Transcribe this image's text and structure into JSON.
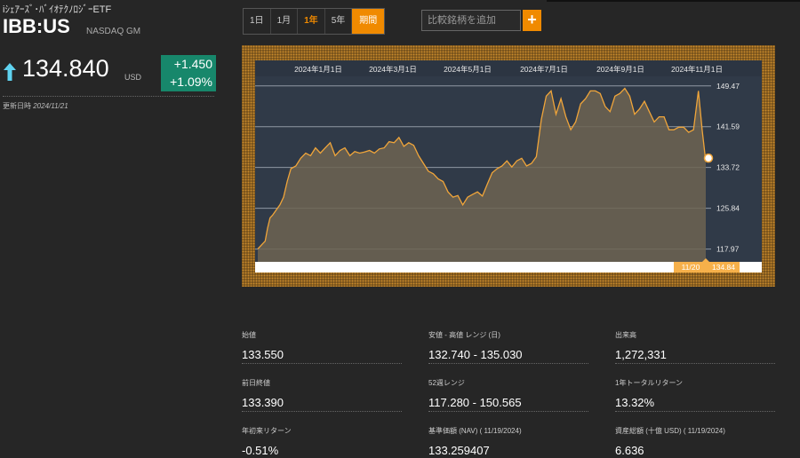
{
  "header": {
    "fund_name": "iｼｪｱｰｽﾞ･ﾊﾞｲｵﾃｸﾉﾛｼﾞｰETF",
    "ticker": "IBB:US",
    "exchange": "NASDAQ GM",
    "price": "134.840",
    "currency": "USD",
    "change": "+1.450",
    "change_pct": "+1.09%",
    "updated_label": "更新日時",
    "updated_date": "2024/11/21",
    "up_color": "#17876b"
  },
  "range_tabs": [
    {
      "label": "1日",
      "active": false
    },
    {
      "label": "1月",
      "active": false
    },
    {
      "label": "1年",
      "active": true
    },
    {
      "label": "5年",
      "active": false
    },
    {
      "label": "期間",
      "active": false
    }
  ],
  "compare": {
    "placeholder": "比較銘柄を追加",
    "add_label": "+"
  },
  "chart_data": {
    "type": "area",
    "x_ticks": [
      "2024年1月1日",
      "2024年3月1日",
      "2024年5月1日",
      "2024年7月1日",
      "2024年9月1日",
      "2024年11月1日"
    ],
    "y_ticks": [
      "149.47",
      "141.59",
      "133.72",
      "125.84",
      "117.97"
    ],
    "ylim": [
      115.5,
      152.0
    ],
    "grid": true,
    "line_color": "#f0a53a",
    "last_point": {
      "date": "11/20",
      "value": 134.84
    },
    "series": [
      {
        "x": [
          "2023-11-21",
          "2023-11-23",
          "2023-11-25",
          "2023-11-27",
          "2023-11-29",
          "2023-12-01",
          "2023-12-03",
          "2023-12-06",
          "2023-12-09",
          "2023-12-12",
          "2023-12-15",
          "2023-12-18",
          "2023-12-22",
          "2023-12-26",
          "2023-12-30",
          "2024-01-03",
          "2024-01-07",
          "2024-01-11",
          "2024-01-15",
          "2024-01-19",
          "2024-01-23",
          "2024-01-27",
          "2024-01-31",
          "2024-02-04",
          "2024-02-08",
          "2024-02-12",
          "2024-02-16",
          "2024-02-20",
          "2024-02-24",
          "2024-02-28",
          "2024-03-03",
          "2024-03-07",
          "2024-03-11",
          "2024-03-15",
          "2024-03-19",
          "2024-03-23",
          "2024-03-27",
          "2024-03-31",
          "2024-04-04",
          "2024-04-08",
          "2024-04-12",
          "2024-04-16",
          "2024-04-20",
          "2024-04-24",
          "2024-04-28",
          "2024-05-02",
          "2024-05-06",
          "2024-05-10",
          "2024-05-14",
          "2024-05-18",
          "2024-05-22",
          "2024-05-26",
          "2024-05-30",
          "2024-06-03",
          "2024-06-07",
          "2024-06-11",
          "2024-06-15",
          "2024-06-19",
          "2024-06-23",
          "2024-06-27",
          "2024-07-01",
          "2024-07-05",
          "2024-07-09",
          "2024-07-13",
          "2024-07-17",
          "2024-07-21",
          "2024-07-25",
          "2024-07-29",
          "2024-08-02",
          "2024-08-06",
          "2024-08-10",
          "2024-08-14",
          "2024-08-18",
          "2024-08-22",
          "2024-08-26",
          "2024-08-30",
          "2024-09-03",
          "2024-09-07",
          "2024-09-11",
          "2024-09-15",
          "2024-09-19",
          "2024-09-23",
          "2024-09-27",
          "2024-10-01",
          "2024-10-05",
          "2024-10-09",
          "2024-10-13",
          "2024-10-17",
          "2024-10-21",
          "2024-10-25",
          "2024-10-29",
          "2024-11-02",
          "2024-11-06",
          "2024-11-10",
          "2024-11-14",
          "2024-11-17",
          "2024-11-20"
        ],
        "values": [
          118.0,
          118.5,
          119.0,
          119.5,
          122.0,
          124.0,
          124.5,
          125.5,
          126.5,
          128.0,
          131.0,
          133.5,
          134.0,
          135.5,
          136.5,
          136.0,
          137.5,
          136.5,
          137.5,
          138.5,
          136.0,
          137.0,
          137.5,
          136.0,
          136.8,
          136.5,
          136.7,
          137.0,
          136.5,
          137.3,
          137.5,
          138.7,
          138.5,
          139.5,
          137.8,
          138.5,
          138.0,
          136.0,
          134.5,
          133.0,
          132.5,
          131.5,
          131.0,
          129.0,
          128.0,
          128.3,
          126.5,
          128.0,
          128.5,
          129.0,
          128.2,
          130.5,
          132.7,
          133.5,
          134.0,
          135.0,
          133.8,
          135.0,
          135.5,
          134.0,
          134.5,
          135.8,
          143.0,
          147.5,
          148.5,
          144.0,
          147.0,
          143.5,
          141.0,
          142.5,
          146.0,
          147.0,
          148.5,
          148.5,
          148.0,
          145.5,
          144.5,
          147.5,
          148.0,
          149.0,
          147.5,
          144.0,
          145.0,
          146.5,
          144.5,
          142.5,
          143.5,
          143.5,
          141.0,
          141.0,
          141.5,
          141.5,
          140.5,
          141.0,
          148.5,
          141.0,
          134.84
        ]
      }
    ]
  },
  "stats": [
    {
      "label": "始値",
      "value": "133.550"
    },
    {
      "label": "安値 - 高値 レンジ (日)",
      "value": "132.740 - 135.030"
    },
    {
      "label": "出来高",
      "value": "1,272,331"
    },
    {
      "label": "前日終値",
      "value": "133.390"
    },
    {
      "label": "52週レンジ",
      "value": "117.280 - 150.565"
    },
    {
      "label": "1年トータルリターン",
      "value": "13.32%"
    },
    {
      "label": "年初来リターン",
      "value": "-0.51%"
    },
    {
      "label": "基準価額 (NAV) ( 11/19/2024)",
      "value": "133.259407"
    },
    {
      "label": "資産総額 (十億 USD) ( 11/19/2024)",
      "value": "6.636"
    }
  ]
}
